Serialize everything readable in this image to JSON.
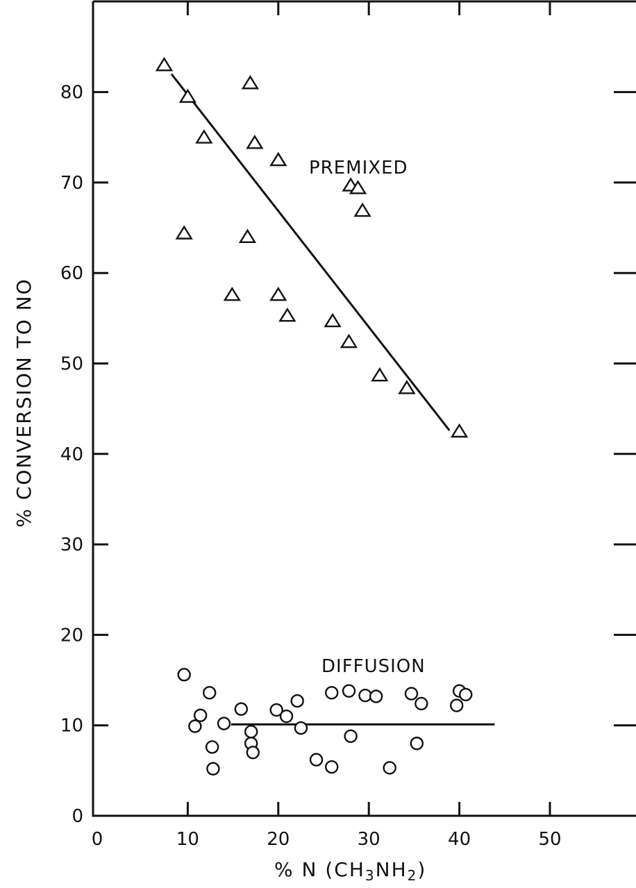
{
  "chart_data": {
    "type": "scatter",
    "xlabel_parts": [
      "% N (CH",
      "3",
      "NH",
      "2",
      ")"
    ],
    "ylabel": "% CONVERSION TO NO",
    "xlim": [
      0,
      60
    ],
    "ylim": [
      0,
      90
    ],
    "x_ticks": [
      0,
      10,
      20,
      30,
      40,
      50
    ],
    "y_ticks": [
      0,
      10,
      20,
      30,
      40,
      50,
      60,
      70,
      80
    ],
    "x_tick_labels": [
      "0",
      "10",
      "20",
      "30",
      "40",
      "50"
    ],
    "y_tick_labels": [
      "0",
      "10",
      "20",
      "30",
      "40",
      "50",
      "60",
      "70",
      "80"
    ],
    "grid": false,
    "series": [
      {
        "name": "PREMIXED",
        "marker": "triangle",
        "points": [
          [
            7.4,
            82.9
          ],
          [
            10.0,
            79.4
          ],
          [
            11.8,
            74.9
          ],
          [
            9.6,
            64.3
          ],
          [
            16.9,
            80.9
          ],
          [
            17.4,
            74.3
          ],
          [
            16.6,
            63.9
          ],
          [
            14.9,
            57.5
          ],
          [
            20.0,
            72.4
          ],
          [
            20.0,
            57.5
          ],
          [
            21.0,
            55.2
          ],
          [
            26.0,
            54.6
          ],
          [
            27.8,
            52.3
          ],
          [
            28.0,
            69.6
          ],
          [
            28.8,
            69.3
          ],
          [
            29.3,
            66.8
          ],
          [
            31.2,
            48.6
          ],
          [
            34.2,
            47.2
          ],
          [
            40.0,
            42.4
          ]
        ],
        "fit_line": [
          [
            8.2,
            82.0
          ],
          [
            38.9,
            42.6
          ]
        ]
      },
      {
        "name": "DIFFUSION",
        "marker": "circle",
        "points": [
          [
            9.6,
            15.6
          ],
          [
            12.4,
            13.6
          ],
          [
            11.4,
            11.1
          ],
          [
            10.8,
            9.9
          ],
          [
            12.7,
            7.6
          ],
          [
            12.8,
            5.2
          ],
          [
            14.0,
            10.2
          ],
          [
            15.9,
            11.8
          ],
          [
            17.0,
            9.3
          ],
          [
            17.0,
            8.0
          ],
          [
            17.2,
            7.0
          ],
          [
            19.8,
            11.7
          ],
          [
            20.9,
            11.0
          ],
          [
            22.1,
            12.7
          ],
          [
            22.5,
            9.7
          ],
          [
            24.2,
            6.2
          ],
          [
            25.9,
            13.6
          ],
          [
            25.9,
            5.4
          ],
          [
            27.8,
            13.8
          ],
          [
            28.0,
            8.8
          ],
          [
            29.6,
            13.3
          ],
          [
            30.8,
            13.2
          ],
          [
            32.3,
            5.3
          ],
          [
            34.7,
            13.5
          ],
          [
            35.3,
            8.0
          ],
          [
            35.8,
            12.4
          ],
          [
            39.7,
            12.2
          ],
          [
            40.0,
            13.8
          ],
          [
            40.7,
            13.4
          ]
        ],
        "fit_line": [
          [
            14.8,
            10.1
          ],
          [
            43.9,
            10.1
          ]
        ]
      }
    ]
  }
}
